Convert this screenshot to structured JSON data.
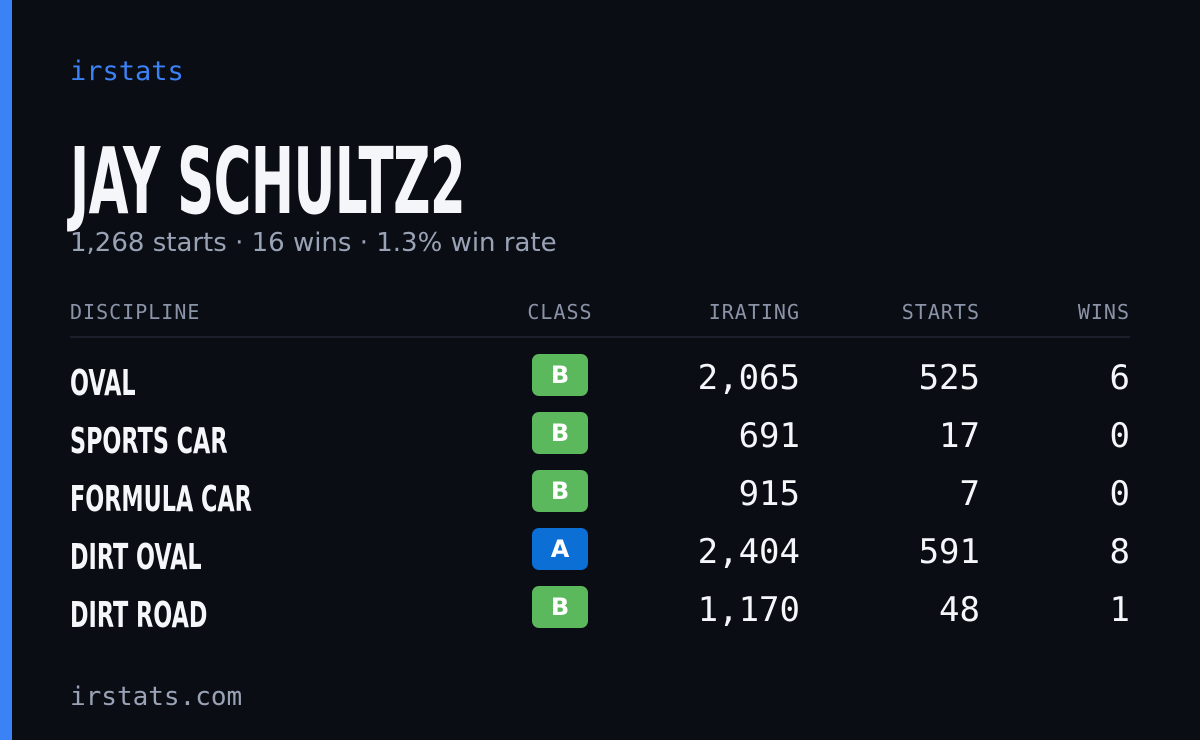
{
  "brand": "irstats",
  "header": {
    "title": "JAY SCHULTZ2",
    "subtitle": "1,268 starts · 16 wins · 1.3% win rate"
  },
  "table": {
    "columns": [
      "DISCIPLINE",
      "CLASS",
      "IRATING",
      "STARTS",
      "WINS"
    ],
    "rows": [
      {
        "discipline": "OVAL",
        "class": "B",
        "class_color": "#5cb85c",
        "irating": "2,065",
        "starts": "525",
        "wins": "6"
      },
      {
        "discipline": "SPORTS CAR",
        "class": "B",
        "class_color": "#5cb85c",
        "irating": "691",
        "starts": "17",
        "wins": "0"
      },
      {
        "discipline": "FORMULA CAR",
        "class": "B",
        "class_color": "#5cb85c",
        "irating": "915",
        "starts": "7",
        "wins": "0"
      },
      {
        "discipline": "DIRT OVAL",
        "class": "A",
        "class_color": "#0b6fd6",
        "irating": "2,404",
        "starts": "591",
        "wins": "8"
      },
      {
        "discipline": "DIRT ROAD",
        "class": "B",
        "class_color": "#5cb85c",
        "irating": "1,170",
        "starts": "48",
        "wins": "1"
      }
    ]
  },
  "footer": "irstats.com"
}
